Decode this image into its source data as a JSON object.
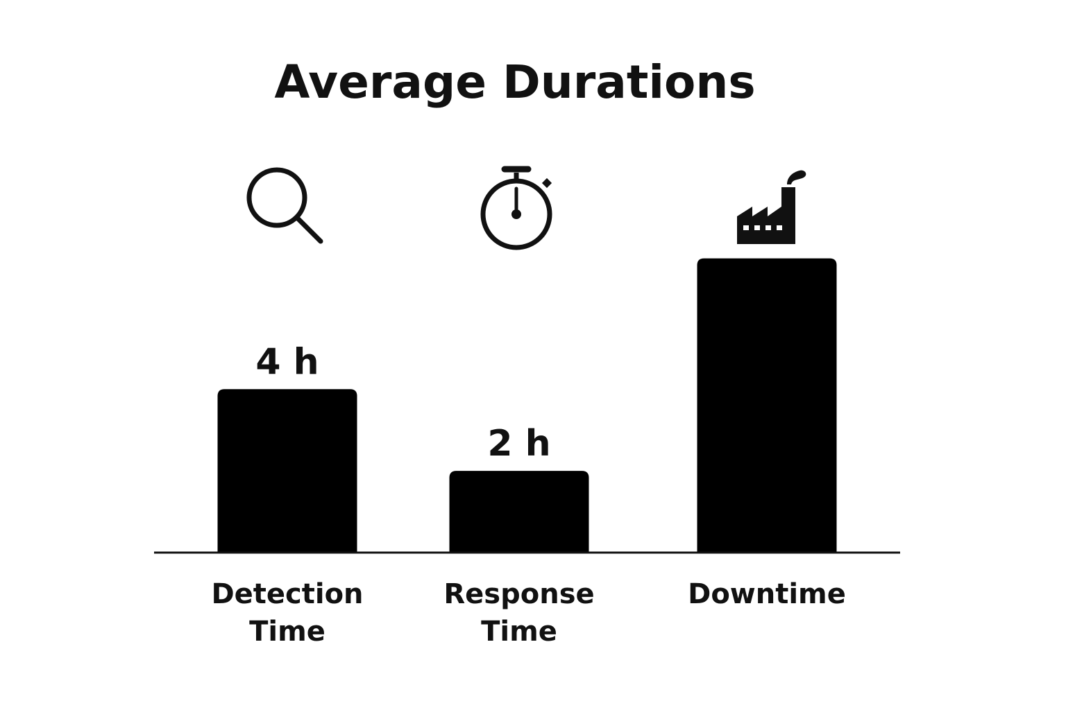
{
  "chart_data": {
    "type": "bar",
    "title": "Average Durations",
    "xlabel": "",
    "ylabel": "",
    "unit": "h",
    "categories": [
      "Detection Time",
      "Response Time",
      "Downtime"
    ],
    "category_lines": [
      [
        "Detection",
        "Time"
      ],
      [
        "Response",
        "Time"
      ],
      [
        "Downtime"
      ]
    ],
    "values": [
      4,
      2,
      7.2
    ],
    "value_labels": [
      "4 h",
      "2 h",
      ""
    ],
    "icons": [
      "magnifier-icon",
      "stopwatch-icon",
      "factory-icon"
    ],
    "ylim": [
      0,
      7.5
    ],
    "grid": false,
    "legend": "none",
    "bar_color": "#000000",
    "axis_color": "#111111"
  }
}
